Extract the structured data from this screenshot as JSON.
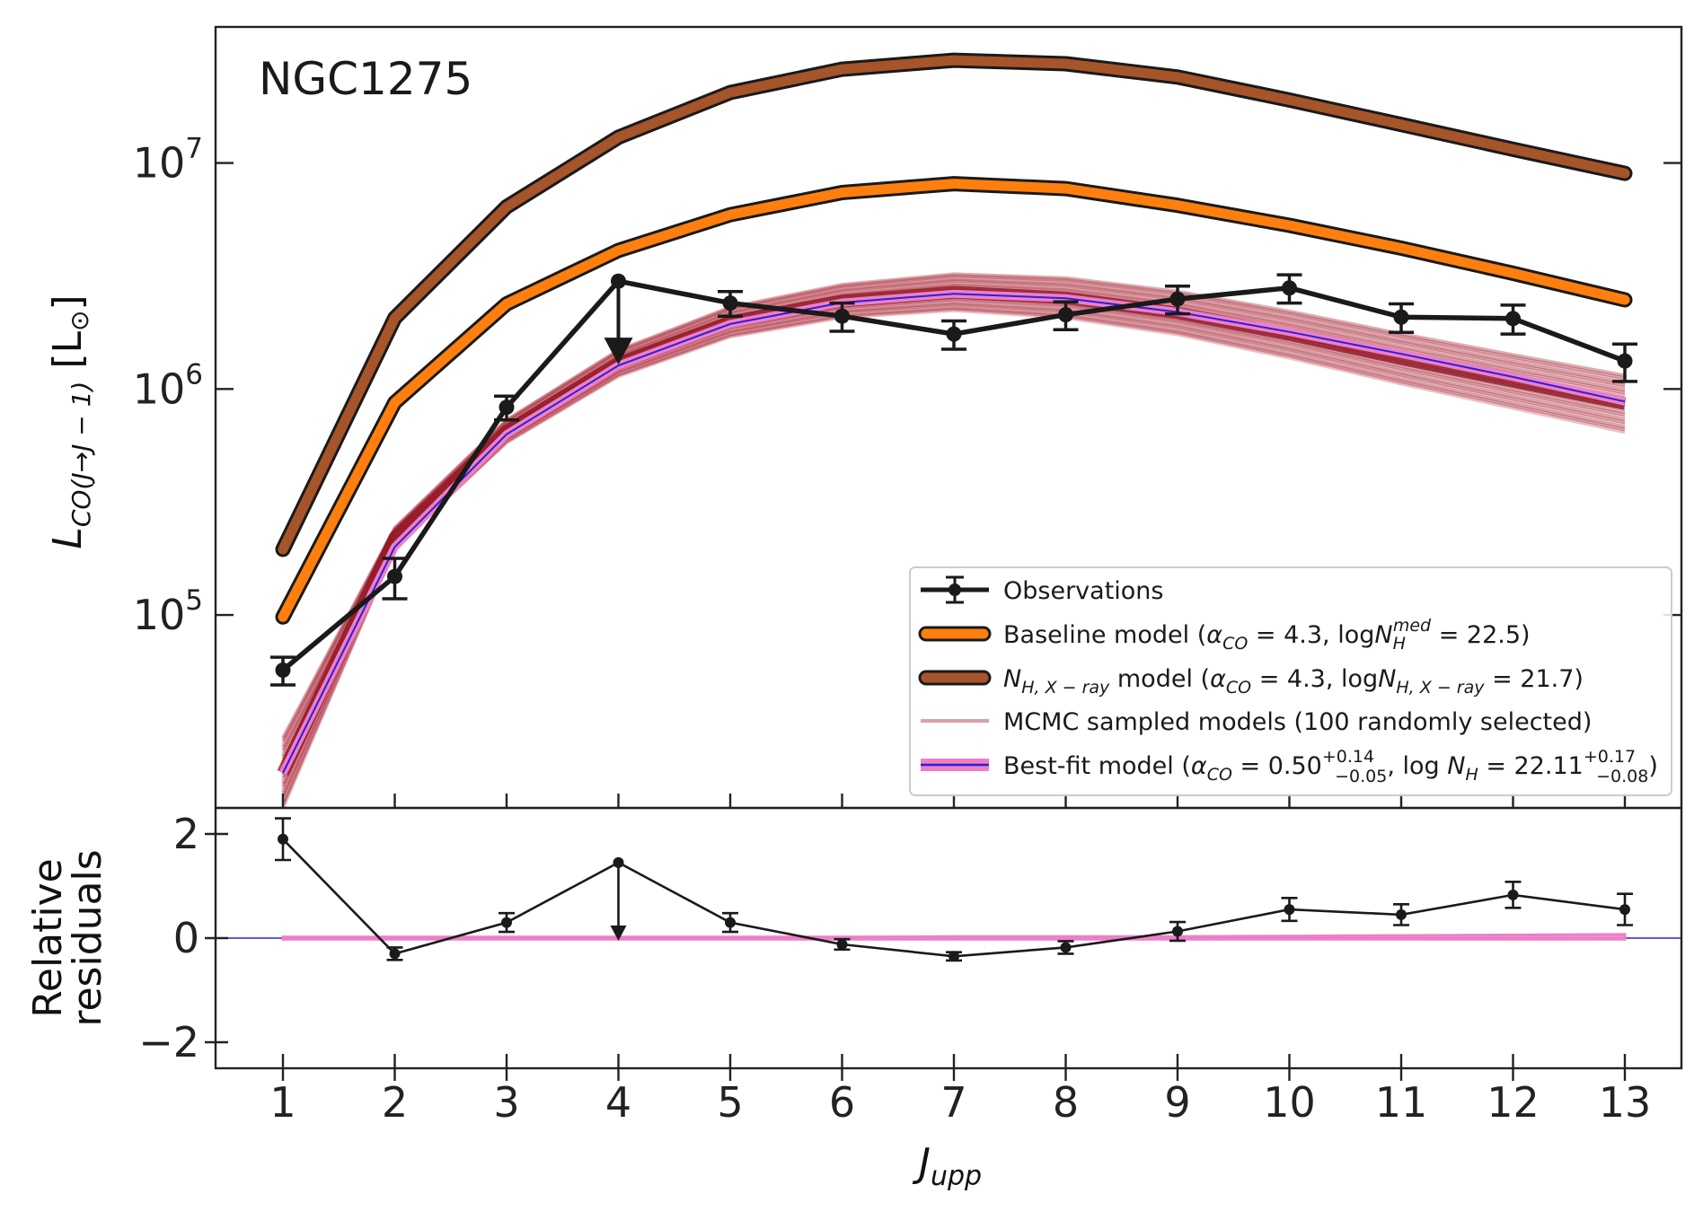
{
  "chart_data": [
    {
      "type": "line",
      "panel": "main",
      "annotation": "NGC1275",
      "ylabel": "L_{CO(J→J−1)} [L_⊙]",
      "yscale": "log",
      "ylim": [
        14000,
        40000000
      ],
      "yticks": [
        {
          "value": 100000,
          "mantissa": "10",
          "exp": "5"
        },
        {
          "value": 1000000,
          "mantissa": "10",
          "exp": "6"
        },
        {
          "value": 10000000,
          "mantissa": "10",
          "exp": "7"
        }
      ],
      "x": [
        1,
        2,
        3,
        4,
        5,
        6,
        7,
        8,
        9,
        10,
        11,
        12,
        13
      ],
      "series": [
        {
          "name": "N_H,X-ray model",
          "role": "nhxray",
          "color": "#a6542a",
          "values": [
            195000,
            2060000,
            6400000,
            13000000,
            20500000,
            26000000,
            28500000,
            27500000,
            24000000,
            19000000,
            14800000,
            11500000,
            9000000
          ]
        },
        {
          "name": "Baseline model",
          "role": "baseline",
          "color": "#ff7f0e",
          "values": [
            98000,
            870000,
            2380000,
            4100000,
            5900000,
            7400000,
            8100000,
            7700000,
            6500000,
            5300000,
            4200000,
            3250000,
            2480000
          ]
        },
        {
          "name": "MCMC band",
          "role": "mcmc",
          "color": "#8b0e1c",
          "values": [
            20000,
            220000,
            650000,
            1300000,
            1980000,
            2450000,
            2680000,
            2530000,
            2170000,
            1740000,
            1360000,
            1080000,
            860000
          ]
        },
        {
          "name": "Best-fit model",
          "role": "bestfit",
          "color": "#2b21d6",
          "values": [
            20000,
            200000,
            630000,
            1270000,
            1940000,
            2410000,
            2640000,
            2520000,
            2190000,
            1790000,
            1430000,
            1130000,
            880000
          ]
        }
      ],
      "observations": {
        "x": [
          1,
          2,
          3,
          4,
          5,
          6,
          7,
          8,
          9,
          10,
          11,
          12,
          13
        ],
        "values": [
          57000,
          148000,
          830000,
          3000000,
          2400000,
          2100000,
          1750000,
          2130000,
          2500000,
          2800000,
          2080000,
          2050000,
          1330000
        ],
        "err_low": [
          8000,
          30000,
          100000,
          0,
          300000,
          300000,
          250000,
          300000,
          350000,
          400000,
          300000,
          300000,
          250000
        ],
        "err_high": [
          8000,
          30000,
          100000,
          0,
          300000,
          300000,
          250000,
          300000,
          350000,
          400000,
          300000,
          300000,
          250000
        ],
        "upper_limit_x": 4,
        "upper_limit_arrow_to": 1330000
      },
      "legend": {
        "placement": "lower-right",
        "entries": [
          {
            "label": "Observations",
            "style": "errorbar"
          },
          {
            "label_parts": [
              "Baseline model (",
              "α",
              "CO",
              " = 4.3, log",
              "N",
              "H",
              "med",
              " = 22.5)"
            ],
            "style": "baseline"
          },
          {
            "label_parts": [
              "N",
              "H, X − ray",
              " model (",
              "α",
              "CO",
              " = 4.3, log",
              "N",
              "H, X − ray",
              " = 21.7)"
            ],
            "style": "nhxray"
          },
          {
            "label": "MCMC sampled models (100 randomly selected)",
            "style": "mcmc"
          },
          {
            "label_parts": [
              "Best-fit model (",
              "α",
              "CO",
              " = 0.50",
              "+0.14",
              "−0.05",
              ", log ",
              "N",
              "H",
              " = 22.11",
              "+0.17",
              "−0.08",
              ")"
            ],
            "style": "bestfit"
          }
        ]
      }
    },
    {
      "type": "line",
      "panel": "residuals",
      "ylabel": [
        "Relative",
        "residuals"
      ],
      "xlabel": "J_upp",
      "ylim": [
        -2.5,
        2.5
      ],
      "yticks": [
        {
          "value": 2,
          "label": "2"
        },
        {
          "value": 0,
          "label": "0"
        },
        {
          "value": -2,
          "label": "−2"
        }
      ],
      "xticks": [
        "1",
        "2",
        "3",
        "4",
        "5",
        "6",
        "7",
        "8",
        "9",
        "10",
        "11",
        "12",
        "13"
      ],
      "x": [
        1,
        2,
        3,
        4,
        5,
        6,
        7,
        8,
        9,
        10,
        11,
        12,
        13
      ],
      "values": [
        1.9,
        -0.3,
        0.3,
        1.45,
        0.3,
        -0.12,
        -0.35,
        -0.18,
        0.13,
        0.55,
        0.45,
        0.83,
        0.55
      ],
      "err": [
        0.4,
        0.12,
        0.18,
        0,
        0.18,
        0.1,
        0.08,
        0.12,
        0.18,
        0.22,
        0.2,
        0.25,
        0.3
      ],
      "upper_limit_x": 4,
      "upper_limit_arrow_to": 0.0,
      "band_low": [
        -0.02,
        -0.02,
        -0.02,
        -0.02,
        -0.02,
        -0.02,
        -0.02,
        -0.02,
        -0.02,
        -0.02,
        -0.02,
        -0.02,
        -0.02
      ],
      "band_high": [
        0.02,
        0.02,
        0.02,
        0.02,
        0.02,
        0.02,
        0.03,
        0.03,
        0.03,
        0.04,
        0.05,
        0.06,
        0.07
      ],
      "reference_line": 0
    }
  ]
}
